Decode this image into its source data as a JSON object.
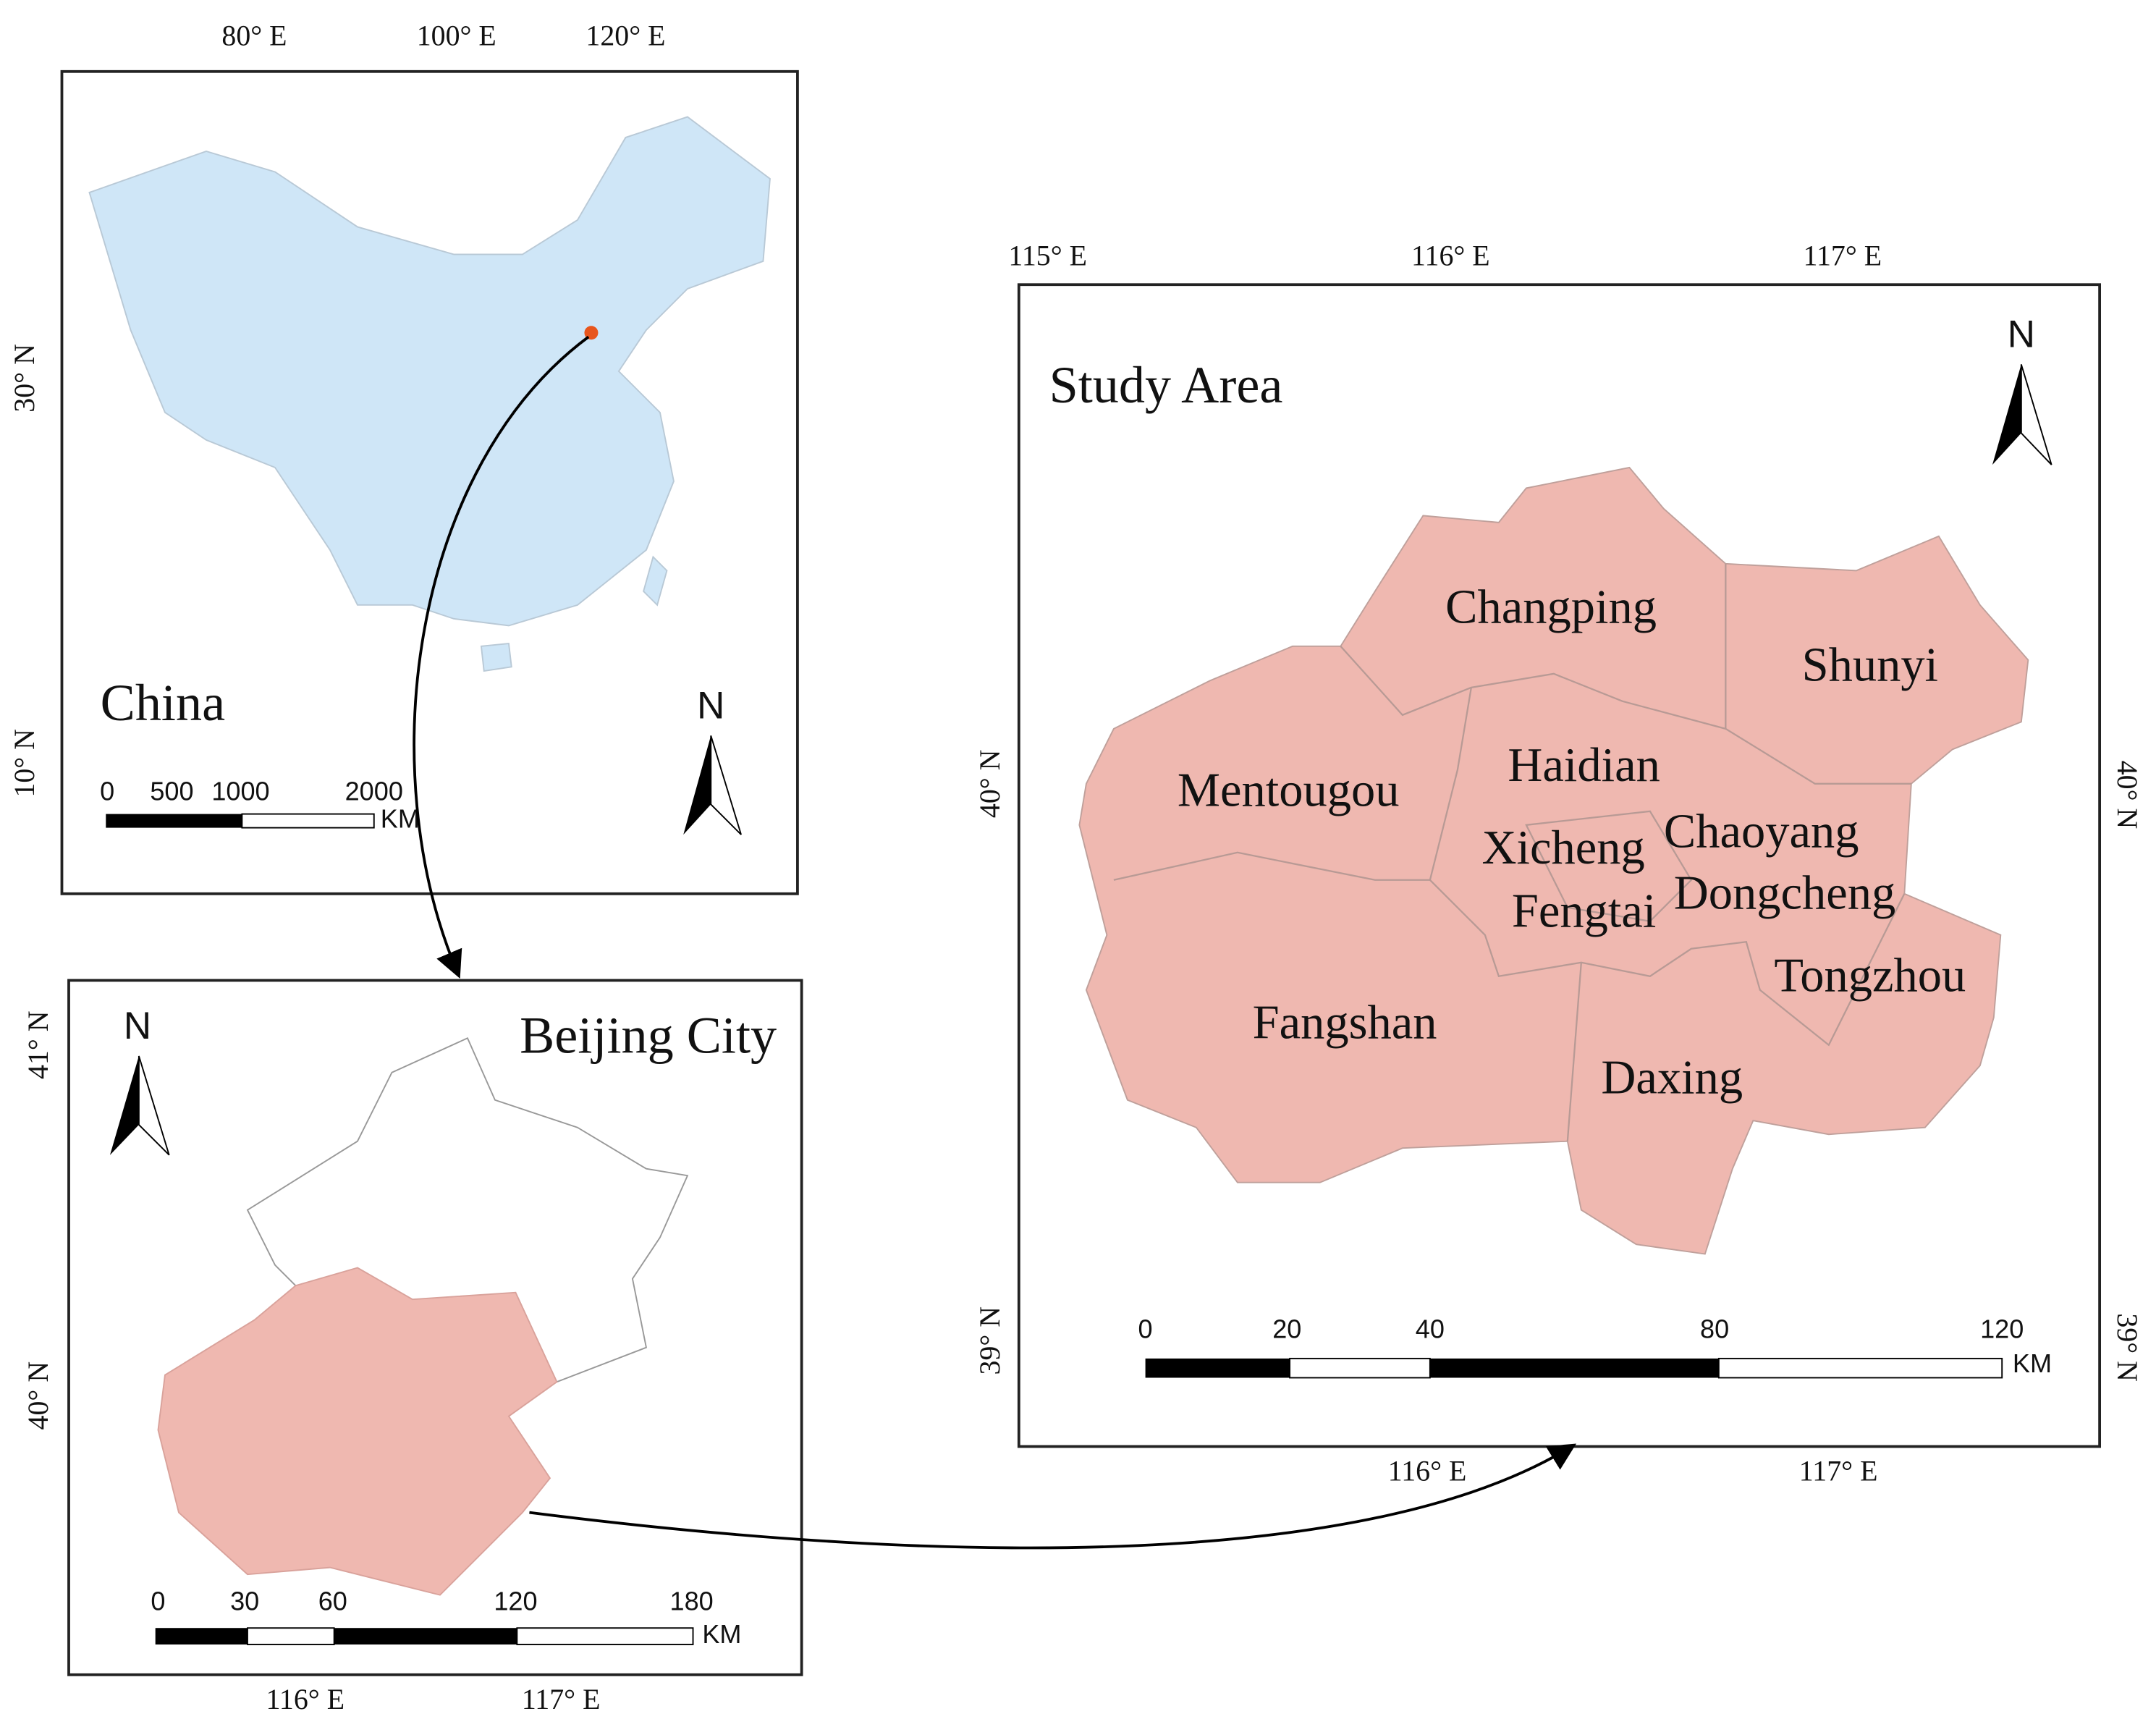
{
  "china": {
    "title": "China",
    "x_labels": [
      "80° E",
      "100° E",
      "120° E"
    ],
    "y_labels": [
      "30° N",
      "10° N"
    ],
    "scale_labels": [
      "0",
      "500",
      "1000",
      "2000"
    ],
    "scale_unit": "KM",
    "north": "N"
  },
  "beijing": {
    "title": "Beijing City",
    "x_labels": [
      "116° E",
      "117° E"
    ],
    "y_labels": [
      "41° N",
      "40° N"
    ],
    "scale_labels": [
      "0",
      "30",
      "60",
      "120",
      "180"
    ],
    "scale_unit": "KM",
    "north": "N"
  },
  "study_area": {
    "title": "Study Area",
    "x_labels_top": [
      "115° E",
      "116° E",
      "117° E"
    ],
    "x_labels_bottom": [
      "116° E",
      "117° E"
    ],
    "y_labels_left": [
      "40° N",
      "39° N"
    ],
    "y_labels_right": [
      "40° N",
      "39° N"
    ],
    "districts": [
      "Changping",
      "Shunyi",
      "Haidian",
      "Mentougou",
      "Xicheng",
      "Chaoyang",
      "Fengtai",
      "Dongcheng",
      "Tongzhou",
      "Fangshan",
      "Daxing"
    ],
    "scale_labels": [
      "0",
      "20",
      "40",
      "80",
      "120"
    ],
    "scale_unit": "KM",
    "north": "N"
  }
}
